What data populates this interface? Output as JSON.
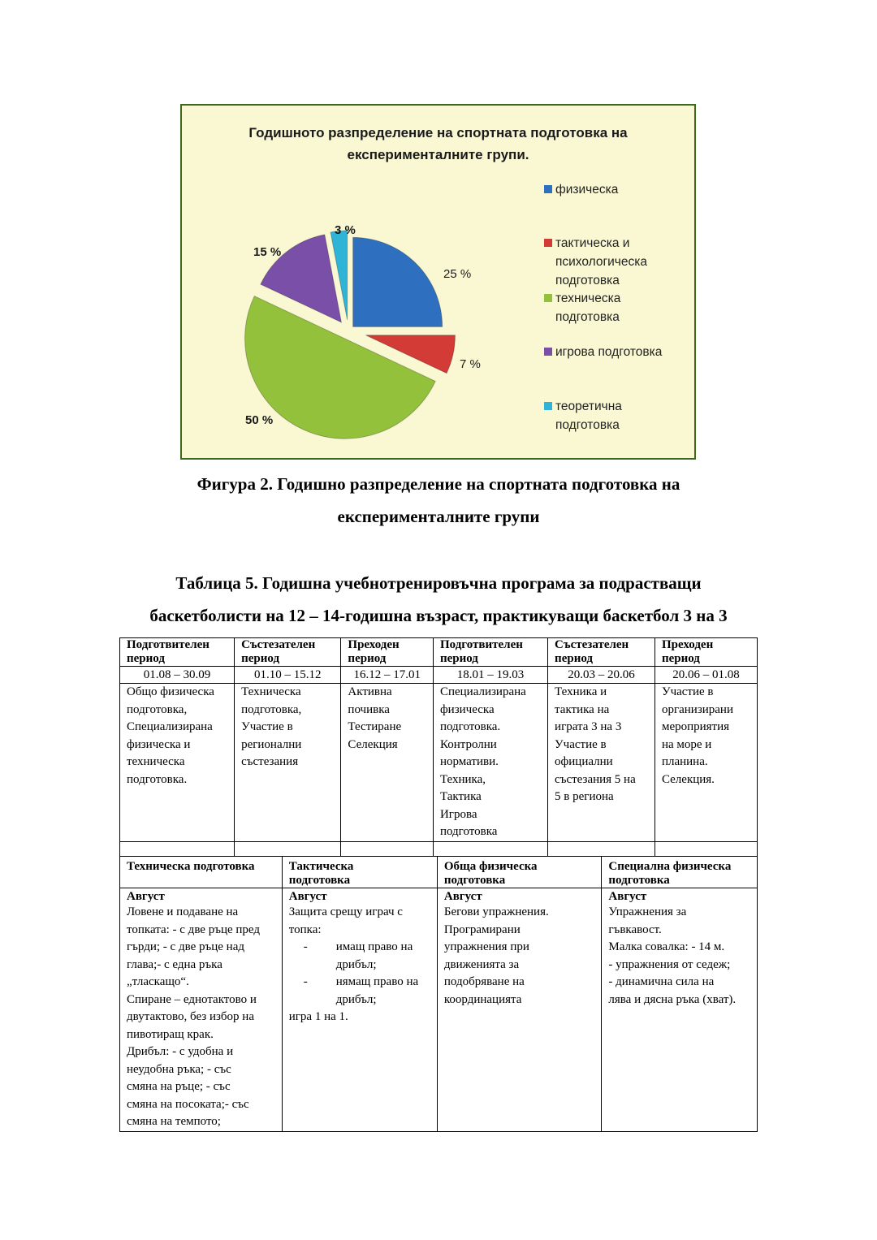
{
  "chart_data": {
    "type": "pie",
    "title": "Годишното разпределение на спортната подготовка на експерименталните групи.",
    "title_lines": [
      "Годишното разпределение на спортната подготовка на",
      "експерименталните групи."
    ],
    "legend_position": "right",
    "background": "#f9f8d3",
    "slices": [
      {
        "name": "физическа",
        "legend_lines": [
          "физическа"
        ],
        "value": 25,
        "label": "25 %",
        "color": "#2f6fbf"
      },
      {
        "name": "тактическа и психологическа подготовка",
        "legend_lines": [
          "тактическа и",
          "психологическа",
          "подготовка"
        ],
        "value": 7,
        "label": "7 %",
        "color": "#d23b36"
      },
      {
        "name": "техническа подготовка",
        "legend_lines": [
          "техническа",
          "подготовка"
        ],
        "value": 50,
        "label": "50 %",
        "color": "#94c13c"
      },
      {
        "name": "игрова подготовка",
        "legend_lines": [
          "игрова подготовка"
        ],
        "value": 15,
        "label": "15 %",
        "color": "#7a4fa8"
      },
      {
        "name": "теоретична подготовка",
        "legend_lines": [
          "теоретична",
          "подготовка"
        ],
        "value": 3,
        "label": "3 %",
        "color": "#2fb3d6"
      }
    ]
  },
  "figure_caption": [
    "Фигура 2. Годишно разпределение на спортната подготовка на",
    "експерименталните групи"
  ],
  "table_caption": [
    "Таблица 5. Годишна учебнотренировъчна програма за подрастващи",
    "баскетболисти на 12 – 14-годишна възраст, практикуващи баскетбол 3 на 3"
  ],
  "periods": [
    {
      "name": [
        "Подготвителен",
        "период"
      ],
      "dates": "01.08 – 30.09",
      "content": [
        "Общо физическа",
        "подготовка,",
        "Специализирана",
        "физическа и",
        "техническа",
        "подготовка."
      ]
    },
    {
      "name": [
        "Състезателен",
        "период"
      ],
      "dates": "01.10 – 15.12",
      "content": [
        "Техническа",
        "подготовка,",
        "Участие в",
        "регионални",
        "състезания"
      ]
    },
    {
      "name": [
        "Преходен",
        "период"
      ],
      "dates": "16.12 – 17.01",
      "content": [
        "Активна",
        "почивка",
        "Тестиране",
        "Селекция"
      ]
    },
    {
      "name": [
        "Подготвителен",
        "период"
      ],
      "dates": "18.01 – 19.03",
      "content": [
        "Специализирана",
        "физическа",
        "подготовка.",
        "Контролни",
        "нормативи.",
        "Техника,",
        "Тактика",
        "Игрова",
        "подготовка"
      ]
    },
    {
      "name": [
        "Състезателен",
        "период"
      ],
      "dates": "20.03 – 20.06",
      "content": [
        "Техника и",
        "тактика на",
        "играта 3 на 3",
        "Участие в",
        "официални",
        "състезания 5 на",
        "5  в региона"
      ]
    },
    {
      "name": [
        "Преходен",
        "период"
      ],
      "dates": "20.06 – 01.08",
      "content": [
        "Участие в",
        "организирани",
        "мероприятия",
        "на море и",
        "планина.",
        "Селекция."
      ]
    }
  ],
  "training": [
    {
      "header": [
        "Техническа подготовка"
      ],
      "month": "Август",
      "lines": [
        "Ловене и подаване на",
        "топката: - с две ръце пред",
        "гърди; - с две ръце над",
        "глава;- с една ръка",
        "„тласкащо“.",
        "Спиране – еднотактово и",
        "двутактово, без избор на",
        "пивотиращ крак.",
        "Дрибъл: - с удобна и",
        "неудобна ръка; - със",
        "смяна на ръце; - със",
        "смяна на посоката;- със",
        "смяна на темпото;"
      ]
    },
    {
      "header": [
        "Тактическа",
        "подготовка"
      ],
      "month": "Август",
      "lines": [
        "Защита срещу играч с",
        "топка:"
      ],
      "bullets": [
        [
          "имащ право на",
          "дрибъл;"
        ],
        [
          "нямащ право на",
          "дрибъл;"
        ]
      ],
      "tail": "игра 1 на 1.",
      "bullet_char": "-"
    },
    {
      "header": [
        "Обща физическа",
        "подготовка"
      ],
      "month": "Август",
      "lines": [
        "Бегови упражнения.",
        "Програмирани",
        "упражнения при",
        "движенията за",
        "подобряване на",
        "координацията"
      ]
    },
    {
      "header": [
        "Специална физическа",
        "подготовка"
      ],
      "month": "Август",
      "lines": [
        "Упражнения за",
        "гъвкавост.",
        "Малка совалка: - 14 м.",
        " - упражнения от седеж;",
        "- динамична сила на",
        "лява и дясна ръка (хват)."
      ]
    }
  ]
}
